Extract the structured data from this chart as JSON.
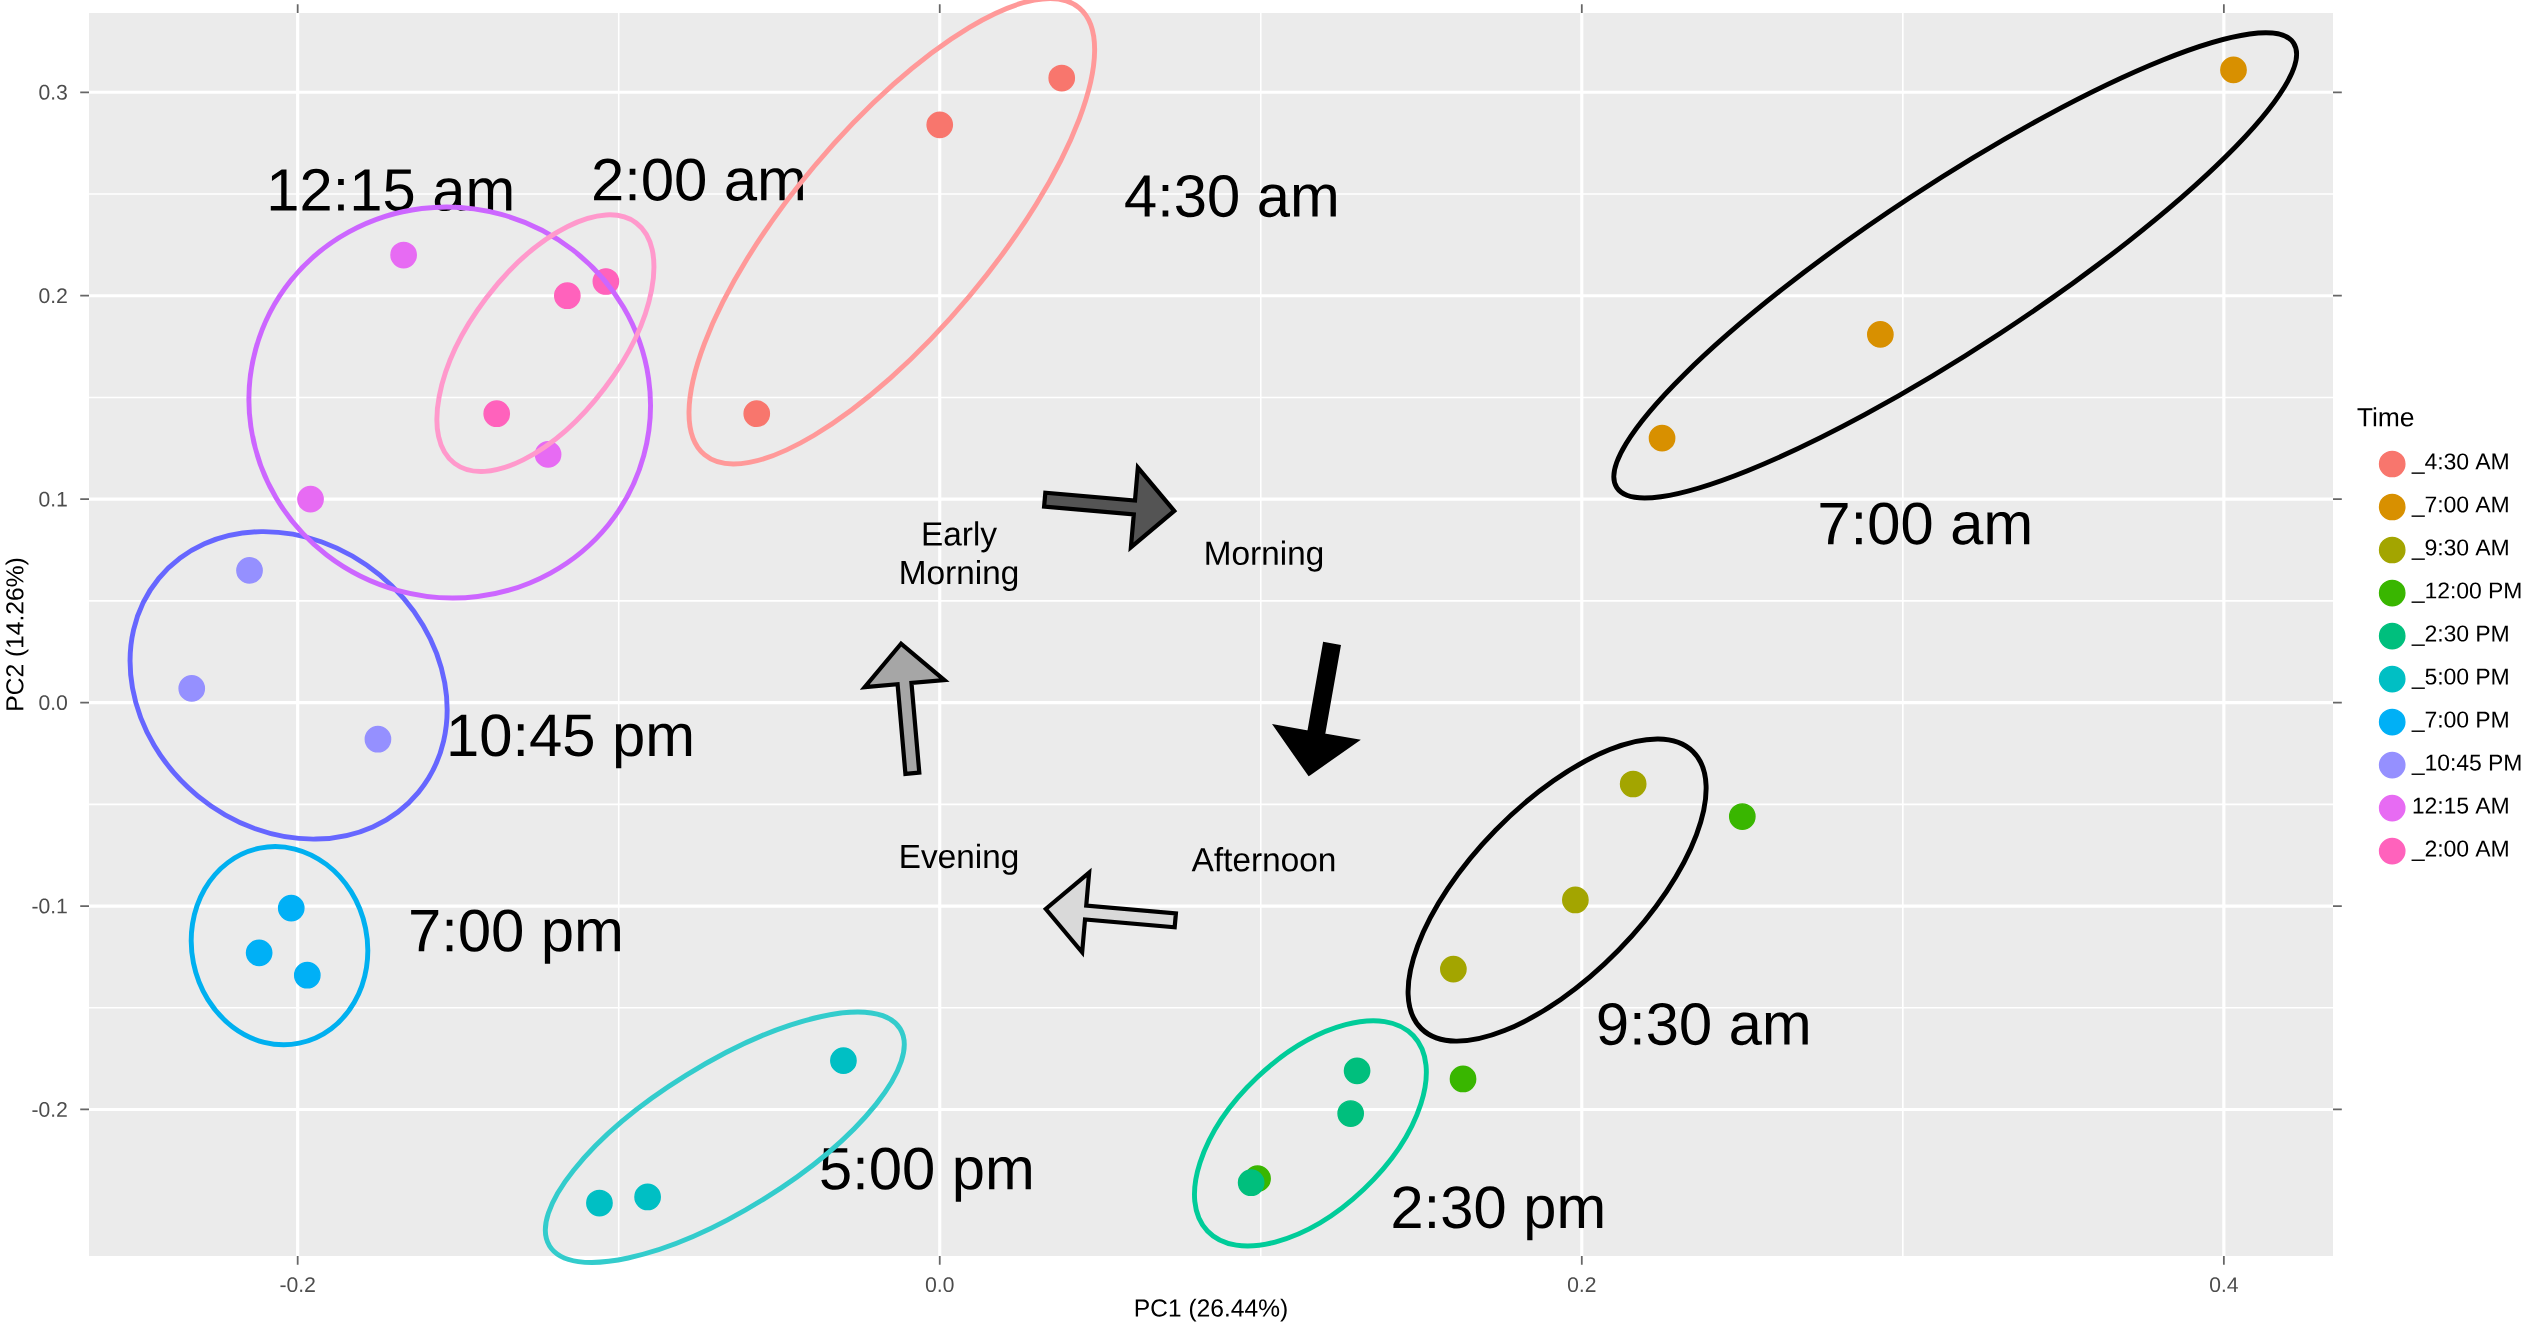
{
  "chart_data": {
    "type": "scatter",
    "xlabel": "PC1 (26.44%)",
    "ylabel": "PC2 (14.26%)",
    "legend_title": "Time",
    "xlim": [
      -0.265,
      0.434
    ],
    "ylim": [
      -0.272,
      0.339
    ],
    "xticks": [
      -0.2,
      {
        "value": 0,
        "label": "0.0"
      },
      0.2,
      0.4
    ],
    "yticks": [
      -0.2,
      -0.1,
      {
        "value": 0,
        "label": "0.0"
      },
      0.1,
      0.2,
      0.3
    ],
    "grid": true,
    "legend": "right",
    "marker": "circle",
    "series": [
      {
        "name": "_4:30 AM",
        "color": "#F8766D",
        "x": [
          0.038,
          0.0,
          -0.057
        ],
        "values": [
          0.307,
          0.284,
          0.142
        ]
      },
      {
        "name": "_7:00 AM",
        "color": "#D89000",
        "x": [
          0.403,
          0.293,
          0.225
        ],
        "values": [
          0.311,
          0.181,
          0.13
        ]
      },
      {
        "name": "_9:30 AM",
        "color": "#A3A500",
        "x": [
          0.216,
          0.198,
          0.16
        ],
        "values": [
          -0.04,
          -0.097,
          -0.131
        ]
      },
      {
        "name": "_12:00 PM",
        "color": "#39B600",
        "x": [
          0.25,
          0.163,
          0.099
        ],
        "values": [
          -0.056,
          -0.185,
          -0.234
        ]
      },
      {
        "name": "_2:30 PM",
        "color": "#00BF7D",
        "x": [
          0.13,
          0.128,
          0.097
        ],
        "values": [
          -0.181,
          -0.202,
          -0.236
        ]
      },
      {
        "name": "_5:00 PM",
        "color": "#00BFC4",
        "x": [
          -0.03,
          -0.091,
          -0.106
        ],
        "values": [
          -0.176,
          -0.243,
          -0.246
        ]
      },
      {
        "name": "_7:00 PM",
        "color": "#00B0F6",
        "x": [
          -0.202,
          -0.212,
          -0.197
        ],
        "values": [
          -0.101,
          -0.123,
          -0.134
        ]
      },
      {
        "name": "_10:45 PM",
        "color": "#9590FF",
        "x": [
          -0.215,
          -0.233,
          -0.175
        ],
        "values": [
          0.065,
          0.007,
          -0.018
        ]
      },
      {
        "name": "12:15 AM",
        "color": "#E76BF3",
        "x": [
          -0.167,
          -0.196,
          -0.122
        ],
        "values": [
          0.22,
          0.1,
          0.122
        ]
      },
      {
        "name": "_2:00 AM",
        "color": "#FF62BC",
        "x": [
          -0.116,
          -0.104,
          -0.138
        ],
        "values": [
          0.2,
          0.207,
          0.142
        ]
      }
    ],
    "annotations": [
      "12:15 am",
      "2:00 am",
      "4:30 am",
      "7:00 am",
      "10:45 pm",
      "7:00 pm",
      "5:00 pm",
      "2:30 pm",
      "9:30 am",
      "Early Morning",
      "Morning",
      "Afternoon",
      "Evening"
    ]
  }
}
